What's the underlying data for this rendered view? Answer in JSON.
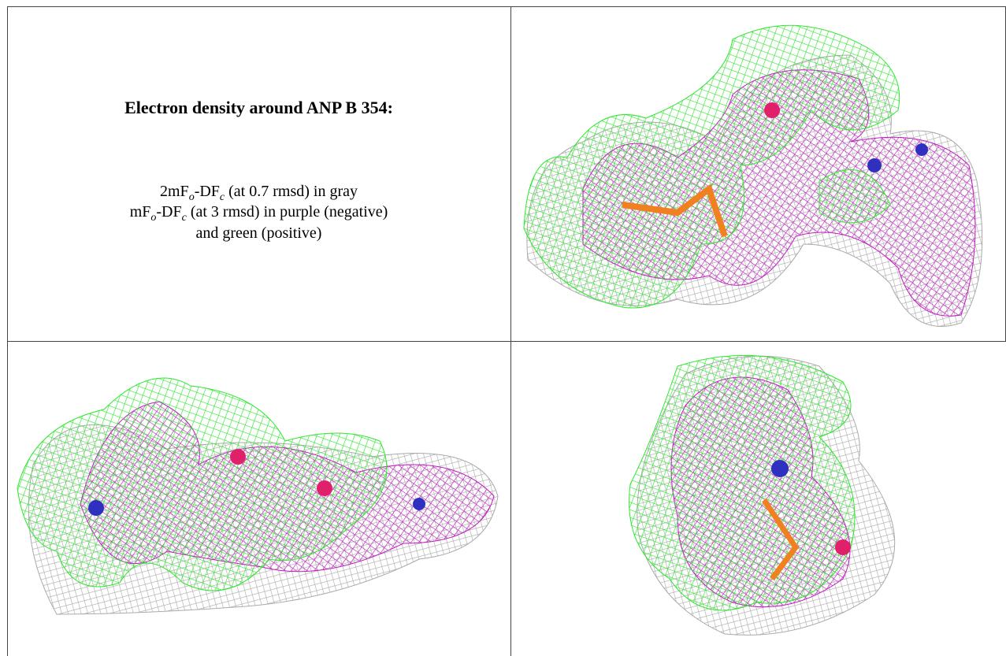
{
  "header": {
    "title": "Electron density around ANP B 354:"
  },
  "legend_lines": [
    [
      "2mF",
      "o",
      "-DF",
      "c",
      " (at 0.7 rmsd) in gray"
    ],
    [
      "mF",
      "o",
      "-DF",
      "c",
      " (at 3 rmsd) in purple (negative)"
    ],
    [
      "and green (positive)"
    ]
  ]
}
